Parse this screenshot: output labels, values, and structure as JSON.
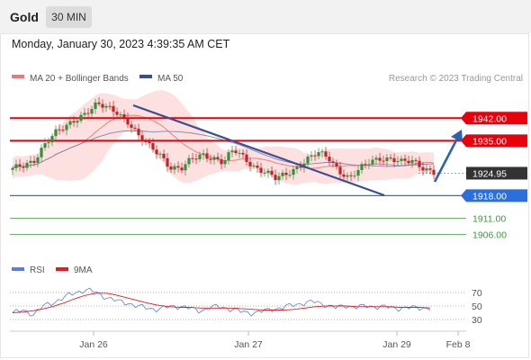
{
  "header": {
    "instrument": "Gold",
    "timeframe": "30 MIN"
  },
  "datetime": "Monday, January 30, 2023 4:39:35 AM CET",
  "legend": {
    "ma_bb": "MA 20 + Bollinger Bands",
    "ma50": "MA 50",
    "credit": "Research © 2023 Trading Central"
  },
  "colors": {
    "resistance": "#e8000b",
    "support": "#2a6fdb",
    "target": "#3c9a3c",
    "current": "#333333",
    "trend": "#3a4f8f",
    "arrow": "#2a62b8",
    "ma20": "#ee7777",
    "ma50": "#7d86b5",
    "bb_fill": "#fde0e0",
    "candle_up": "#3c8c3c",
    "candle_down": "#c02424",
    "rsi": "#5b7fd6",
    "rsi_ma": "#e02020"
  },
  "chart_data": {
    "type": "candlestick",
    "title": "Gold",
    "timeframe": "30 MIN",
    "x_ticks": [
      "Jan 26",
      "Jan 27",
      "Jan 29",
      "Feb 8"
    ],
    "y_range": [
      1900,
      1951
    ],
    "levels": [
      {
        "label": "1942.00",
        "value": 1942.0,
        "kind": "resistance"
      },
      {
        "label": "1935.00",
        "value": 1935.0,
        "kind": "resistance"
      },
      {
        "label": "1924.95",
        "value": 1924.95,
        "kind": "current"
      },
      {
        "label": "1918.00",
        "value": 1918.0,
        "kind": "support"
      },
      {
        "label": "1911.00",
        "value": 1911.0,
        "kind": "target"
      },
      {
        "label": "1906.00",
        "value": 1906.0,
        "kind": "target"
      }
    ],
    "price_anchors": [
      1926,
      1927,
      1929,
      1934,
      1937,
      1939,
      1942,
      1944,
      1946,
      1945,
      1944,
      1941,
      1936,
      1933,
      1931,
      1927,
      1926,
      1929,
      1931,
      1930,
      1928,
      1932,
      1930,
      1927,
      1925,
      1923,
      1925,
      1927,
      1929,
      1931,
      1930,
      1926,
      1923,
      1926,
      1929,
      1930,
      1929,
      1928,
      1929,
      1927,
      1925
    ],
    "rsi": {
      "legend": [
        "RSI",
        "9MA"
      ],
      "levels": [
        70,
        50,
        30
      ],
      "range": [
        10,
        90
      ],
      "rsi_values": [
        40,
        43,
        38,
        50,
        56,
        63,
        70,
        74,
        70,
        63,
        57,
        55,
        49,
        47,
        45,
        49,
        50,
        46,
        43,
        48,
        49,
        45,
        41,
        40,
        42,
        46,
        48,
        52,
        55,
        56,
        52,
        47,
        51,
        48,
        50,
        49,
        48,
        47,
        47,
        48,
        46
      ],
      "ma_values": [
        40,
        41,
        43,
        46,
        50,
        55,
        61,
        66,
        69,
        69,
        66,
        62,
        58,
        54,
        51,
        49,
        48,
        48,
        47,
        47,
        47,
        47,
        46,
        45,
        44,
        44,
        44,
        45,
        47,
        49,
        50,
        50,
        50,
        49,
        49,
        49,
        49,
        48,
        48,
        48,
        47
      ]
    }
  }
}
